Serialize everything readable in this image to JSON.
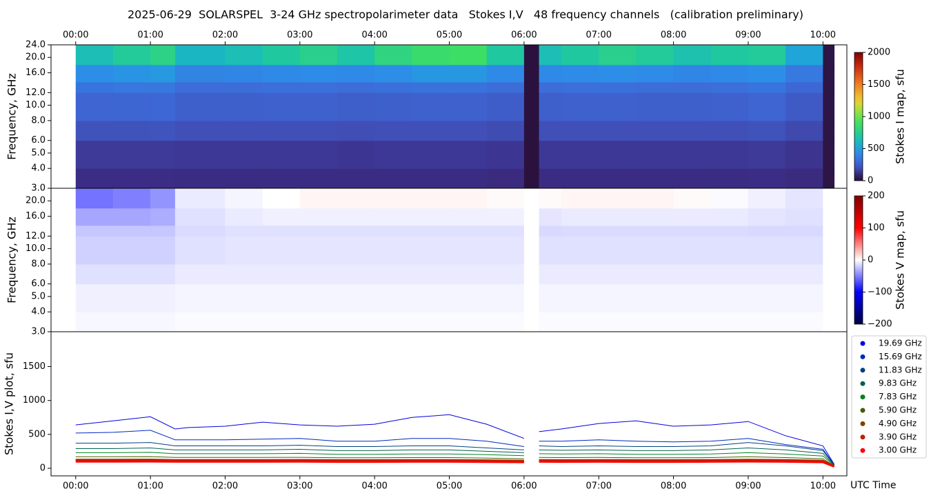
{
  "title": "2025-06-29  SOLARSPEL  3-24 GHz spectropolarimeter data   Stokes I,V   48 frequency channels   (calibration preliminary)",
  "chart_data": [
    {
      "type": "heatmap",
      "ylabel": "Frequency, GHz",
      "log_y": true,
      "colormap": "stokes-i",
      "xlim": [
        -0.33,
        10.32
      ],
      "ylim": [
        3,
        24
      ],
      "xticks": [
        {
          "value": 0,
          "label": "00:00"
        },
        {
          "value": 1,
          "label": "01:00"
        },
        {
          "value": 2,
          "label": "02:00"
        },
        {
          "value": 3,
          "label": "03:00"
        },
        {
          "value": 4,
          "label": "04:00"
        },
        {
          "value": 5,
          "label": "05:00"
        },
        {
          "value": 6,
          "label": "06:00"
        },
        {
          "value": 7,
          "label": "07:00"
        },
        {
          "value": 8,
          "label": "08:00"
        },
        {
          "value": 9,
          "label": "09:00"
        },
        {
          "value": 10,
          "label": "10:00"
        }
      ],
      "yticks": [
        {
          "value": 3,
          "label": "3.0"
        },
        {
          "value": 4,
          "label": "4.0"
        },
        {
          "value": 5,
          "label": "5.0"
        },
        {
          "value": 6,
          "label": "6.0"
        },
        {
          "value": 8,
          "label": "8.0"
        },
        {
          "value": 10,
          "label": "10.0"
        },
        {
          "value": 12,
          "label": "12.0"
        },
        {
          "value": 16,
          "label": "16.0"
        },
        {
          "value": 20,
          "label": "20.0"
        },
        {
          "value": 24,
          "label": "24.0"
        }
      ],
      "x_edges": [
        0,
        0.5,
        1,
        1.33,
        2,
        2.5,
        3,
        3.5,
        4,
        4.5,
        5,
        5.5,
        6,
        6.2,
        6.5,
        7,
        7.5,
        8,
        8.5,
        9,
        9.5,
        10,
        10.15
      ],
      "y_edges": [
        3,
        4,
        6,
        8,
        12,
        14,
        18,
        24
      ],
      "z": [
        [
          120,
          120,
          120,
          115,
          115,
          115,
          115,
          115,
          115,
          115,
          115,
          110,
          10,
          115,
          115,
          115,
          115,
          115,
          115,
          120,
          110,
          20
        ],
        [
          150,
          150,
          150,
          145,
          145,
          145,
          145,
          140,
          145,
          145,
          145,
          140,
          10,
          145,
          145,
          145,
          145,
          145,
          145,
          150,
          135,
          20
        ],
        [
          210,
          210,
          215,
          200,
          200,
          200,
          200,
          195,
          200,
          200,
          200,
          190,
          10,
          200,
          200,
          200,
          200,
          200,
          200,
          210,
          185,
          20
        ],
        [
          280,
          285,
          290,
          260,
          260,
          265,
          265,
          255,
          260,
          265,
          265,
          250,
          10,
          260,
          265,
          265,
          260,
          260,
          265,
          280,
          240,
          20
        ],
        [
          340,
          350,
          350,
          310,
          310,
          320,
          320,
          310,
          320,
          330,
          330,
          310,
          10,
          310,
          320,
          320,
          310,
          310,
          320,
          340,
          290,
          20
        ],
        [
          440,
          460,
          480,
          400,
          410,
          420,
          430,
          420,
          440,
          470,
          470,
          420,
          10,
          420,
          430,
          440,
          430,
          410,
          420,
          440,
          360,
          20
        ],
        [
          640,
          720,
          780,
          600,
          640,
          700,
          760,
          680,
          800,
          860,
          880,
          700,
          10,
          640,
          700,
          760,
          720,
          660,
          700,
          720,
          520,
          20
        ]
      ],
      "colorbar": {
        "label": "Stokes I map, sfu",
        "lim": [
          0,
          2000
        ],
        "ticks": [
          0,
          500,
          1000,
          1500,
          2000
        ]
      }
    },
    {
      "type": "heatmap",
      "ylabel": "Frequency, GHz",
      "log_y": true,
      "colormap": "stokes-v",
      "xlim": [
        -0.33,
        10.32
      ],
      "ylim": [
        3,
        24
      ],
      "yticks": [
        {
          "value": 3,
          "label": "3.0"
        },
        {
          "value": 4,
          "label": "4.0"
        },
        {
          "value": 5,
          "label": "5.0"
        },
        {
          "value": 6,
          "label": "6.0"
        },
        {
          "value": 8,
          "label": "8.0"
        },
        {
          "value": 10,
          "label": "10.0"
        },
        {
          "value": 12,
          "label": "12.0"
        },
        {
          "value": 16,
          "label": "16.0"
        },
        {
          "value": 20,
          "label": "20.0"
        }
      ],
      "x_edges": [
        0,
        0.5,
        1,
        1.33,
        2,
        2.5,
        3,
        3.5,
        4,
        4.5,
        5,
        5.5,
        6,
        6.2,
        6.5,
        7,
        7.5,
        8,
        8.5,
        9,
        9.5,
        10,
        10.15
      ],
      "y_edges": [
        3,
        4,
        6,
        8,
        12,
        14,
        18,
        24
      ],
      "z": [
        [
          -3,
          -3,
          -3,
          -2,
          -2,
          -2,
          -2,
          -2,
          -2,
          -2,
          -2,
          -2,
          0,
          -2,
          -2,
          -2,
          -2,
          -2,
          -2,
          -2,
          -2,
          0
        ],
        [
          -6,
          -6,
          -6,
          -4,
          -4,
          -4,
          -4,
          -4,
          -4,
          -4,
          -4,
          -4,
          0,
          -4,
          -4,
          -4,
          -4,
          -4,
          -4,
          -4,
          -4,
          0
        ],
        [
          -12,
          -12,
          -12,
          -8,
          -8,
          -8,
          -8,
          -8,
          -8,
          -8,
          -8,
          -8,
          0,
          -8,
          -8,
          -8,
          -8,
          -8,
          -8,
          -8,
          -8,
          0
        ],
        [
          -18,
          -18,
          -18,
          -12,
          -10,
          -10,
          -10,
          -10,
          -10,
          -10,
          -10,
          -10,
          0,
          -12,
          -12,
          -12,
          -12,
          -12,
          -12,
          -12,
          -12,
          0
        ],
        [
          -22,
          -22,
          -22,
          -14,
          -12,
          -12,
          -12,
          -12,
          -12,
          -12,
          -12,
          -12,
          0,
          -15,
          -14,
          -14,
          -14,
          -14,
          -14,
          -15,
          -15,
          0
        ],
        [
          -35,
          -35,
          -32,
          -12,
          -8,
          -6,
          -6,
          -6,
          -6,
          -6,
          -6,
          -6,
          0,
          -10,
          -8,
          -8,
          -8,
          -8,
          -8,
          -10,
          -12,
          0
        ],
        [
          -55,
          -50,
          -42,
          -8,
          -4,
          0,
          4,
          4,
          4,
          4,
          4,
          2,
          0,
          2,
          4,
          4,
          4,
          2,
          -2,
          -6,
          -10,
          0
        ]
      ],
      "colorbar": {
        "label": "Stokes V map, sfu",
        "lim": [
          -200,
          200
        ],
        "ticks": [
          {
            "value": -200,
            "label": "−200"
          },
          {
            "value": -100,
            "label": "−100"
          },
          0,
          100,
          200
        ]
      }
    },
    {
      "type": "line",
      "ylabel": "Stokes I,V plot, sfu",
      "xlabel": "UTC Time",
      "legend": "right",
      "xlim": [
        -0.33,
        10.32
      ],
      "ylim": [
        -112,
        2014
      ],
      "xticks": [
        {
          "value": 0,
          "label": "00:00"
        },
        {
          "value": 1,
          "label": "01:00"
        },
        {
          "value": 2,
          "label": "02:00"
        },
        {
          "value": 3,
          "label": "03:00"
        },
        {
          "value": 4,
          "label": "04:00"
        },
        {
          "value": 5,
          "label": "05:00"
        },
        {
          "value": 6,
          "label": "06:00"
        },
        {
          "value": 7,
          "label": "07:00"
        },
        {
          "value": 8,
          "label": "08:00"
        },
        {
          "value": 9,
          "label": "09:00"
        },
        {
          "value": 10,
          "label": "10:00"
        }
      ],
      "yticks": [
        0,
        500,
        1000,
        1500
      ],
      "x": [
        0,
        0.5,
        1,
        1.33,
        1.5,
        2,
        2.5,
        3,
        3.5,
        4,
        4.5,
        5,
        5.5,
        6,
        6.1,
        6.2,
        6.5,
        7,
        7.5,
        8,
        8.5,
        9,
        9.5,
        10,
        10.15
      ],
      "series": [
        {
          "name": "19.69 GHz",
          "color": "#0000e0",
          "values": [
            640,
            700,
            760,
            580,
            600,
            620,
            680,
            640,
            620,
            650,
            750,
            790,
            650,
            440,
            null,
            540,
            580,
            660,
            700,
            620,
            640,
            690,
            480,
            330,
            60
          ]
        },
        {
          "name": "15.69 GHz",
          "color": "#0028c0",
          "values": [
            520,
            530,
            560,
            420,
            420,
            420,
            430,
            440,
            400,
            400,
            440,
            440,
            400,
            320,
            null,
            400,
            400,
            420,
            400,
            390,
            400,
            440,
            350,
            280,
            55
          ]
        },
        {
          "name": "11.83 GHz",
          "color": "#004080",
          "values": [
            370,
            370,
            380,
            330,
            330,
            330,
            330,
            340,
            320,
            320,
            330,
            330,
            300,
            270,
            null,
            330,
            320,
            330,
            320,
            320,
            330,
            380,
            330,
            260,
            50
          ]
        },
        {
          "name": "9.83 GHz",
          "color": "#006050",
          "values": [
            290,
            290,
            300,
            270,
            270,
            270,
            270,
            280,
            260,
            260,
            270,
            270,
            250,
            230,
            null,
            270,
            265,
            270,
            260,
            260,
            270,
            300,
            270,
            220,
            45
          ]
        },
        {
          "name": "7.83 GHz",
          "color": "#008020",
          "values": [
            230,
            230,
            235,
            215,
            215,
            215,
            215,
            220,
            205,
            205,
            210,
            210,
            200,
            185,
            null,
            215,
            210,
            215,
            205,
            205,
            210,
            230,
            210,
            180,
            40
          ]
        },
        {
          "name": "5.90 GHz",
          "color": "#406000",
          "values": [
            170,
            170,
            172,
            160,
            160,
            160,
            160,
            162,
            155,
            155,
            158,
            158,
            150,
            140,
            null,
            160,
            158,
            160,
            155,
            155,
            158,
            170,
            158,
            140,
            35
          ]
        },
        {
          "name": "4.90 GHz",
          "color": "#804000",
          "values": [
            125,
            125,
            126,
            120,
            120,
            120,
            120,
            121,
            118,
            118,
            120,
            120,
            116,
            110,
            null,
            120,
            118,
            120,
            118,
            118,
            120,
            125,
            120,
            110,
            30
          ]
        },
        {
          "name": "3.90 GHz",
          "color": "#c02000",
          "values": [
            115,
            115,
            116,
            112,
            112,
            112,
            112,
            113,
            110,
            110,
            112,
            112,
            108,
            102,
            null,
            112,
            110,
            112,
            110,
            110,
            112,
            116,
            112,
            102,
            28
          ]
        },
        {
          "name": "3.00 GHz",
          "color": "#ff0000",
          "values": [
            100,
            100,
            101,
            98,
            98,
            98,
            98,
            99,
            96,
            96,
            98,
            98,
            95,
            90,
            null,
            98,
            96,
            98,
            96,
            96,
            98,
            101,
            98,
            90,
            25
          ]
        }
      ]
    }
  ]
}
